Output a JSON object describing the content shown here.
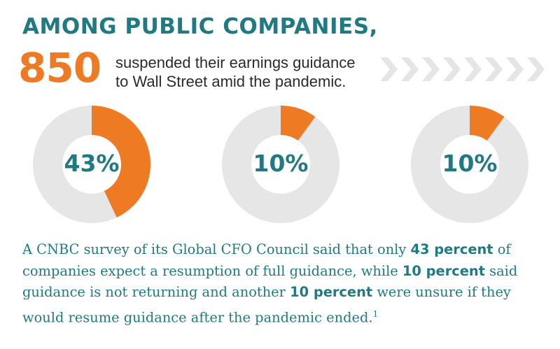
{
  "header": {
    "title": "AMONG PUBLIC COMPANIES,",
    "big_number": "850",
    "big_text_line1": "suspended their earnings guidance",
    "big_text_line2": "to Wall Street amid the pandemic."
  },
  "chart_data": [
    {
      "type": "pie",
      "values": [
        43,
        57
      ],
      "label": "43%"
    },
    {
      "type": "pie",
      "values": [
        10,
        90
      ],
      "label": "10%"
    },
    {
      "type": "pie",
      "values": [
        10,
        90
      ],
      "label": "10%"
    }
  ],
  "colors": {
    "accent": "#ee7a23",
    "track": "#e6e6e6",
    "teal": "#1f7a82",
    "chevron": "#e5e5e5"
  },
  "body": {
    "t1": "A CNBC survey of its Global CFO Council said that only ",
    "b1": "43 percent",
    "t2": " of companies expect a resumption of full guidance, while ",
    "b2": "10 percent",
    "t3": " said guidance is not returning and another ",
    "b3": "10 percent",
    "t4": " were unsure if they would resume guidance after the pandemic ended.",
    "footnote": "1"
  }
}
